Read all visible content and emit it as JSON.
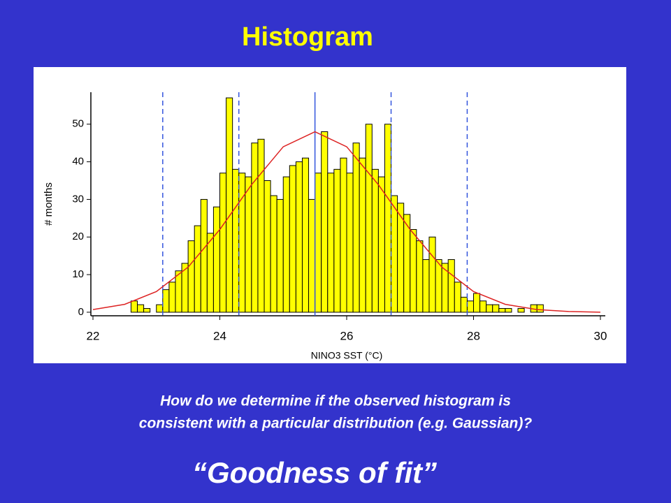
{
  "slide": {
    "title": "Histogram",
    "question_lines": [
      "How do we determine if the observed histogram is",
      "consistent with a particular distribution (e.g. Gaussian)?"
    ],
    "footer": "“Goodness of fit”"
  },
  "chart_data": {
    "type": "histogram",
    "xlabel": "NINO3 SST (°C)",
    "ylabel": "# months",
    "bins": [
      22.6,
      22.7,
      22.8,
      22.9,
      23.0,
      23.1,
      23.2,
      23.3,
      23.4,
      23.5,
      23.6,
      23.7,
      23.8,
      23.9,
      24.0,
      24.1,
      24.2,
      24.3,
      24.4,
      24.5,
      24.6,
      24.7,
      24.8,
      24.9,
      25.0,
      25.1,
      25.2,
      25.3,
      25.4,
      25.5,
      25.6,
      25.7,
      25.8,
      25.9,
      26.0,
      26.1,
      26.2,
      26.3,
      26.4,
      26.5,
      26.6,
      26.7,
      26.8,
      26.9,
      27.0,
      27.1,
      27.2,
      27.3,
      27.4,
      27.5,
      27.6,
      27.7,
      27.8,
      27.9,
      28.0,
      28.1,
      28.2,
      28.3,
      28.4,
      28.5,
      28.6,
      28.7,
      28.8,
      28.9,
      29.0,
      29.1
    ],
    "values": [
      3,
      2,
      1,
      0,
      2,
      6,
      8,
      11,
      13,
      19,
      23,
      30,
      21,
      28,
      37,
      57,
      38,
      37,
      36,
      45,
      46,
      35,
      31,
      30,
      36,
      39,
      40,
      41,
      30,
      37,
      48,
      37,
      38,
      41,
      37,
      45,
      41,
      50,
      38,
      36,
      50,
      31,
      29,
      26,
      22,
      19,
      14,
      20,
      14,
      13,
      14,
      8,
      4,
      3,
      5,
      3,
      2,
      2,
      1,
      1,
      0,
      1,
      0,
      2,
      2
    ],
    "color": "#ffff00",
    "fit_curve": {
      "color": "#dd2222",
      "x": [
        22,
        22.5,
        23,
        23.5,
        24,
        24.5,
        25,
        25.5,
        26,
        26.5,
        27,
        27.5,
        28,
        28.5,
        29,
        29.5,
        30
      ],
      "values": [
        0.7,
        2.1,
        5.5,
        12.0,
        22.0,
        33.9,
        44.0,
        48,
        44.0,
        33.9,
        22.0,
        12.0,
        5.5,
        2.1,
        0.7,
        0.2,
        0
      ]
    },
    "vlines": {
      "color": "#3355dd",
      "dashed": [
        true,
        true,
        false,
        true,
        true
      ],
      "values": [
        23.1,
        24.3,
        25.5,
        26.7,
        27.9
      ]
    },
    "xlim": [
      22,
      30
    ],
    "xticks": [
      22,
      24,
      26,
      28,
      30
    ],
    "ylim": [
      -1.5,
      58.5
    ],
    "yticks": [
      0,
      10,
      20,
      30,
      40,
      50
    ]
  }
}
